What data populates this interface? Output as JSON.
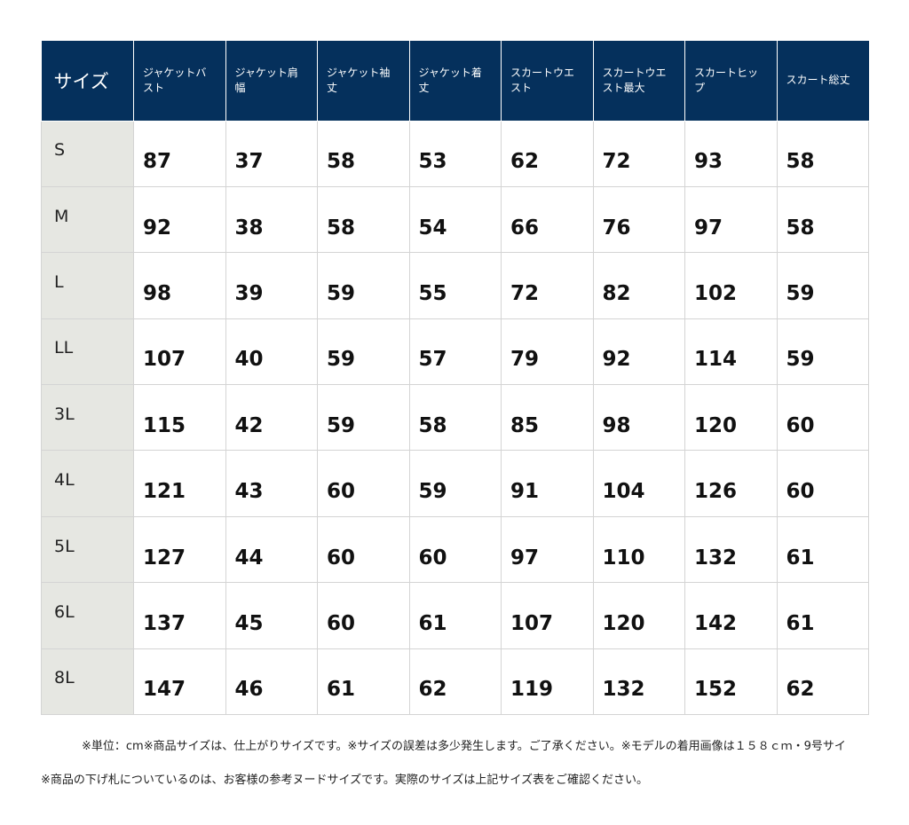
{
  "table": {
    "headers": [
      "サイズ",
      "ジャケットバスト",
      "ジャケット肩幅",
      "ジャケット袖丈",
      "ジャケット着丈",
      "スカートウエスト",
      "スカートウエスト最大",
      "スカートヒップ",
      "スカート総丈"
    ],
    "rows": [
      [
        "S",
        "87",
        "37",
        "58",
        "53",
        "62",
        "72",
        "93",
        "58"
      ],
      [
        "M",
        "92",
        "38",
        "58",
        "54",
        "66",
        "76",
        "97",
        "58"
      ],
      [
        "L",
        "98",
        "39",
        "59",
        "55",
        "72",
        "82",
        "102",
        "59"
      ],
      [
        "LL",
        "107",
        "40",
        "59",
        "57",
        "79",
        "92",
        "114",
        "59"
      ],
      [
        "3L",
        "115",
        "42",
        "59",
        "58",
        "85",
        "98",
        "120",
        "60"
      ],
      [
        "4L",
        "121",
        "43",
        "60",
        "59",
        "91",
        "104",
        "126",
        "60"
      ],
      [
        "5L",
        "127",
        "44",
        "60",
        "60",
        "97",
        "110",
        "132",
        "61"
      ],
      [
        "6L",
        "137",
        "45",
        "60",
        "61",
        "107",
        "120",
        "142",
        "61"
      ],
      [
        "8L",
        "147",
        "46",
        "61",
        "62",
        "119",
        "132",
        "152",
        "62"
      ]
    ]
  },
  "notes": {
    "line1": "※単位：cm※商品サイズは、仕上がりサイズです。※サイズの誤差は多少発生します。ご了承ください。※モデルの着用画像は１５８ｃｍ・9号サイ",
    "line2": "※商品の下げ札についているのは、お客様の参考ヌードサイズです。実際のサイズは上記サイズ表をご確認ください。"
  },
  "colors": {
    "header_bg": "#05305c",
    "size_col_bg": "#e6e7e2",
    "border": "#d4d4d4"
  }
}
